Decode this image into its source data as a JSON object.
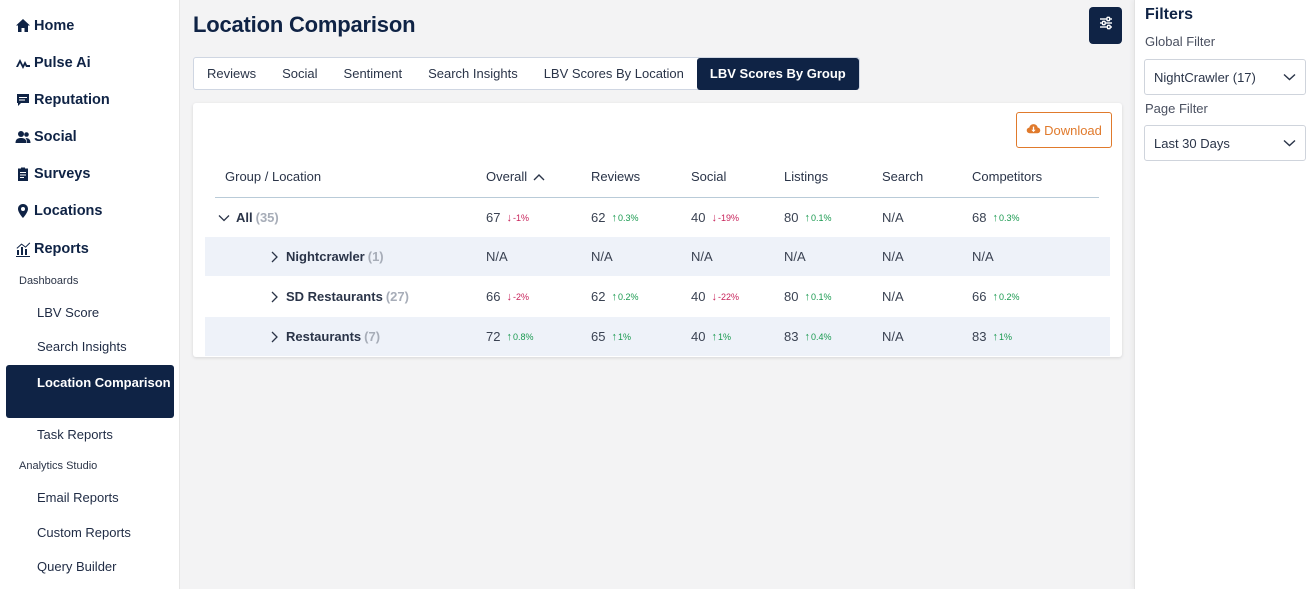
{
  "sidebar": {
    "nav": [
      {
        "label": "Home",
        "icon": "home-icon"
      },
      {
        "label": "Pulse Ai",
        "icon": "pulse-icon"
      },
      {
        "label": "Reputation",
        "icon": "comment-icon"
      },
      {
        "label": "Social",
        "icon": "users-icon"
      },
      {
        "label": "Surveys",
        "icon": "clipboard-icon"
      },
      {
        "label": "Locations",
        "icon": "map-pin-icon"
      },
      {
        "label": "Reports",
        "icon": "chart-icon"
      }
    ],
    "sections": {
      "dashboards": "Dashboards",
      "analytics_studio": "Analytics Studio"
    },
    "dashboard_items": [
      {
        "label": "LBV Score"
      },
      {
        "label": "Search Insights"
      },
      {
        "label": "Location Comparison",
        "active": true
      },
      {
        "label": "Task Reports"
      }
    ],
    "analytics_items": [
      {
        "label": "Email Reports"
      },
      {
        "label": "Custom Reports"
      },
      {
        "label": "Query Builder"
      }
    ]
  },
  "header": {
    "title": "Location Comparison"
  },
  "tabs": [
    {
      "label": "Reviews"
    },
    {
      "label": "Social"
    },
    {
      "label": "Sentiment"
    },
    {
      "label": "Search Insights"
    },
    {
      "label": "LBV Scores By Location"
    },
    {
      "label": "LBV Scores By Group",
      "active": true
    }
  ],
  "table": {
    "download_label": "Download",
    "columns": [
      "Group / Location",
      "Overall",
      "Reviews",
      "Social",
      "Listings",
      "Search",
      "Competitors"
    ],
    "rows": [
      {
        "name": "All",
        "count": "(35)",
        "expanded": true,
        "cells": [
          {
            "v": "67",
            "d": "-1%",
            "dir": "down"
          },
          {
            "v": "62",
            "d": "0.3%",
            "dir": "up"
          },
          {
            "v": "40",
            "d": "-19%",
            "dir": "down"
          },
          {
            "v": "80",
            "d": "0.1%",
            "dir": "up"
          },
          {
            "v": "N/A",
            "d": "",
            "dir": ""
          },
          {
            "v": "68",
            "d": "0.3%",
            "dir": "up"
          }
        ]
      },
      {
        "name": "Nightcrawler",
        "count": "(1)",
        "expanded": false,
        "cells": [
          {
            "v": "N/A",
            "d": "",
            "dir": ""
          },
          {
            "v": "N/A",
            "d": "",
            "dir": ""
          },
          {
            "v": "N/A",
            "d": "",
            "dir": ""
          },
          {
            "v": "N/A",
            "d": "",
            "dir": ""
          },
          {
            "v": "N/A",
            "d": "",
            "dir": ""
          },
          {
            "v": "N/A",
            "d": "",
            "dir": ""
          }
        ]
      },
      {
        "name": "SD Restaurants",
        "count": "(27)",
        "expanded": false,
        "cells": [
          {
            "v": "66",
            "d": "-2%",
            "dir": "down"
          },
          {
            "v": "62",
            "d": "0.2%",
            "dir": "up"
          },
          {
            "v": "40",
            "d": "-22%",
            "dir": "down"
          },
          {
            "v": "80",
            "d": "0.1%",
            "dir": "up"
          },
          {
            "v": "N/A",
            "d": "",
            "dir": ""
          },
          {
            "v": "66",
            "d": "0.2%",
            "dir": "up"
          }
        ]
      },
      {
        "name": "Restaurants",
        "count": "(7)",
        "expanded": false,
        "cells": [
          {
            "v": "72",
            "d": "0.8%",
            "dir": "up"
          },
          {
            "v": "65",
            "d": "1%",
            "dir": "up"
          },
          {
            "v": "40",
            "d": "1%",
            "dir": "up"
          },
          {
            "v": "83",
            "d": "0.4%",
            "dir": "up"
          },
          {
            "v": "N/A",
            "d": "",
            "dir": ""
          },
          {
            "v": "83",
            "d": "1%",
            "dir": "up"
          }
        ]
      }
    ]
  },
  "filters": {
    "title": "Filters",
    "global_label": "Global Filter",
    "global_value": "NightCrawler (17)",
    "page_label": "Page Filter",
    "page_value": "Last 30 Days"
  },
  "colors": {
    "navy": "#0f2345",
    "accent_orange": "#e07a2c",
    "up_green": "#1a9a50",
    "down_red": "#c8245b"
  }
}
